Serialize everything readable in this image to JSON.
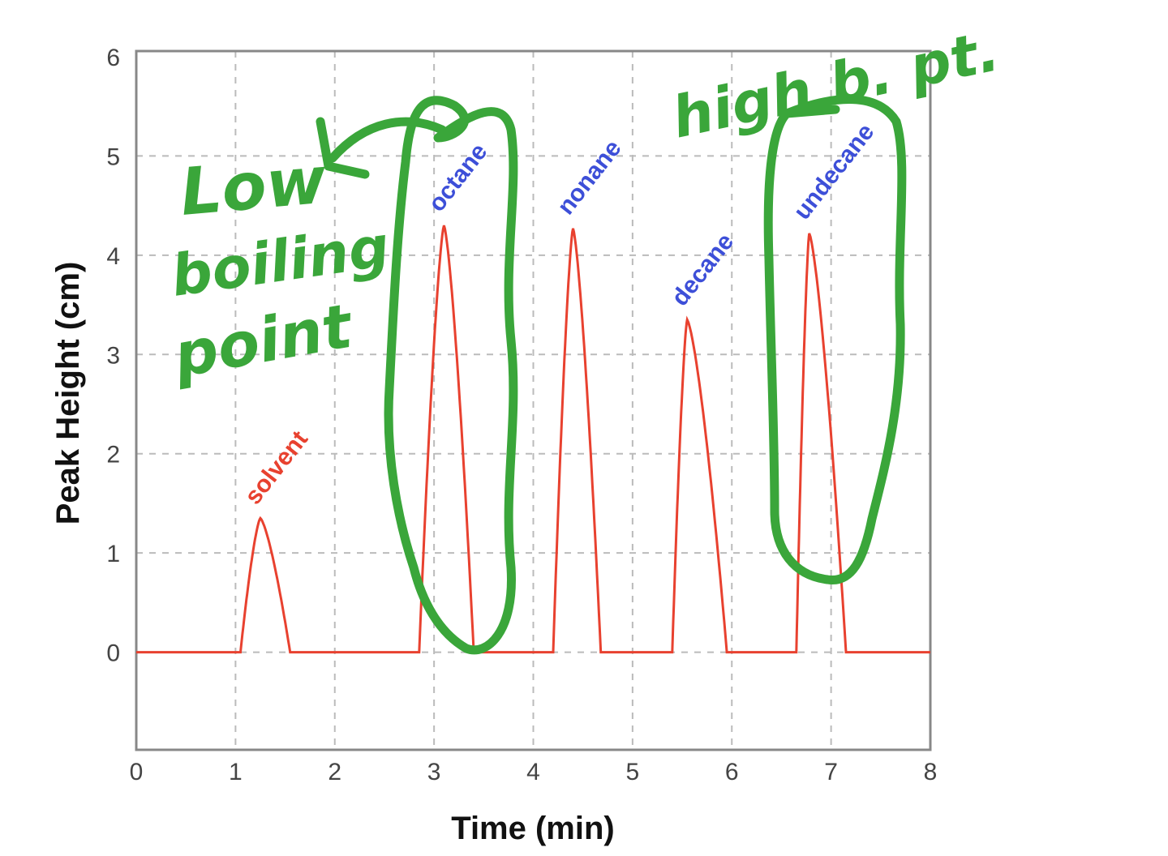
{
  "chart_data": {
    "type": "line",
    "title": "",
    "xlabel": "Time (min)",
    "ylabel": "Peak Height (cm)",
    "xlim": [
      0,
      8
    ],
    "ylim": [
      -1,
      6
    ],
    "xticks": [
      "0",
      "1",
      "2",
      "3",
      "4",
      "5",
      "6",
      "7",
      "8"
    ],
    "yticks": [
      "0",
      "1",
      "2",
      "3",
      "4",
      "5",
      "6"
    ],
    "grid": true,
    "line_color": "#e8412f",
    "peaks": [
      {
        "label": "solvent",
        "center": 1.25,
        "height": 1.35,
        "start": 1.05,
        "end": 1.55,
        "label_color": "#e8412f"
      },
      {
        "label": "octane",
        "center": 3.1,
        "height": 4.3,
        "start": 2.85,
        "end": 3.4,
        "label_color": "#3d4fd8"
      },
      {
        "label": "nonane",
        "center": 4.4,
        "height": 4.27,
        "start": 4.2,
        "end": 4.68,
        "label_color": "#3d4fd8"
      },
      {
        "label": "decane",
        "center": 5.55,
        "height": 3.35,
        "start": 5.4,
        "end": 5.95,
        "label_color": "#3d4fd8"
      },
      {
        "label": "undecane",
        "center": 6.78,
        "height": 4.22,
        "start": 6.65,
        "end": 7.15,
        "label_color": "#3d4fd8"
      }
    ],
    "annotations": {
      "low": [
        "Low",
        "boiling",
        "point"
      ],
      "high": "high b. pt.",
      "color": "#3aa63a"
    }
  }
}
